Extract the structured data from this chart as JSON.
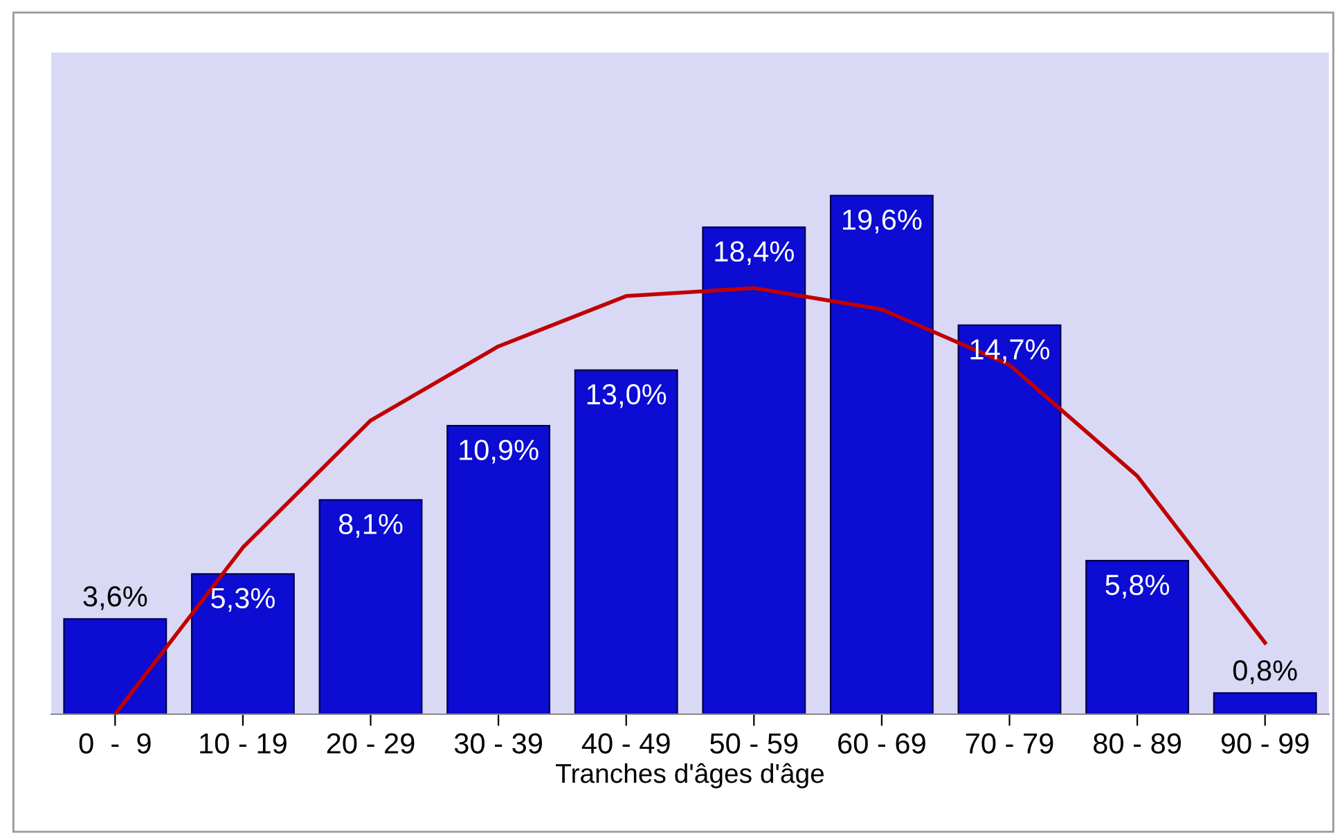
{
  "chart_data": {
    "type": "bar",
    "xlabel": "Tranches d'âges d'âge",
    "categories": [
      "0  -  9",
      "10 - 19",
      "20 - 29",
      "30 - 39",
      "40 - 49",
      "50 - 59",
      "60 - 69",
      "70 - 79",
      "80 - 89",
      "90 - 99"
    ],
    "ylim": [
      0,
      25
    ],
    "tick_labels": "x",
    "grid": false,
    "legend": false,
    "series": [
      {
        "color": "#0c0cd2",
        "values": [
          3.6,
          5.3,
          8.1,
          10.9,
          13.0,
          18.4,
          19.6,
          14.7,
          5.8,
          0.8
        ],
        "value_labels": [
          "3,6%",
          "5,3%",
          "8,1%",
          "10,9%",
          "13,0%",
          "18,4%",
          "19,6%",
          "14,7%",
          "5,8%",
          "0,8%"
        ]
      },
      {
        "type": "line",
        "color": "#c00000",
        "values": [
          0,
          6.3,
          11.1,
          13.9,
          15.8,
          16.1,
          15.3,
          13.2,
          9.0,
          2.7
        ]
      }
    ]
  }
}
